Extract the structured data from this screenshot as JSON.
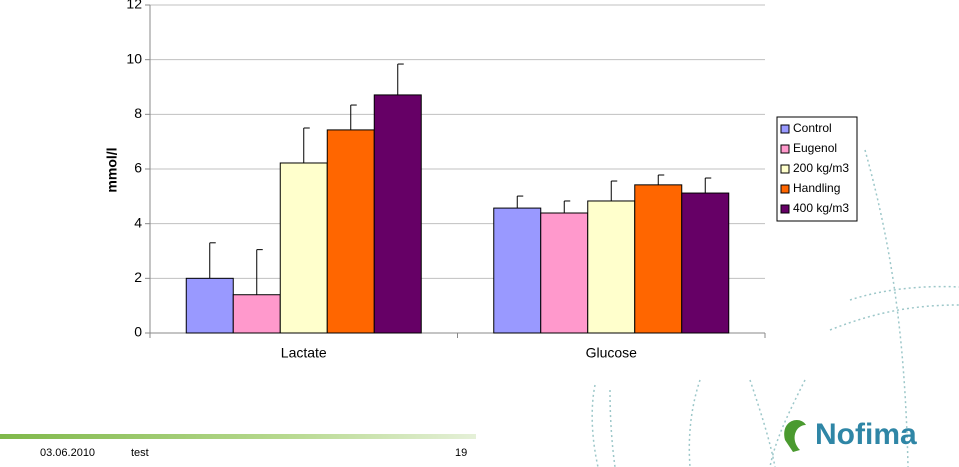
{
  "chart_data": {
    "type": "bar",
    "y_label": "mmol/l",
    "categories": [
      "Lactate",
      "Glucose"
    ],
    "series": [
      {
        "name": "Control",
        "color": "#9999ff",
        "values": [
          2.0,
          4.57
        ],
        "errors": [
          1.3,
          0.44
        ]
      },
      {
        "name": "Eugenol",
        "color": "#ff99cc",
        "values": [
          1.4,
          4.39
        ],
        "errors": [
          1.65,
          0.44
        ]
      },
      {
        "name": "200 kg/m3",
        "color": "#ffffcc",
        "values": [
          6.22,
          4.83
        ],
        "errors": [
          1.28,
          0.73
        ]
      },
      {
        "name": "Handling",
        "color": "#ff6600",
        "values": [
          7.43,
          5.42
        ],
        "errors": [
          0.91,
          0.36
        ]
      },
      {
        "name": "400 kg/m3",
        "color": "#660066",
        "values": [
          8.71,
          5.12
        ],
        "errors": [
          1.13,
          0.55
        ]
      }
    ],
    "ylim": [
      0,
      12
    ],
    "yticks": [
      0,
      2,
      4,
      6,
      8,
      10,
      12
    ],
    "grid": true
  },
  "footer": {
    "date": "03.06.2010",
    "text": "test",
    "page": "19",
    "logo": "Nofima"
  }
}
